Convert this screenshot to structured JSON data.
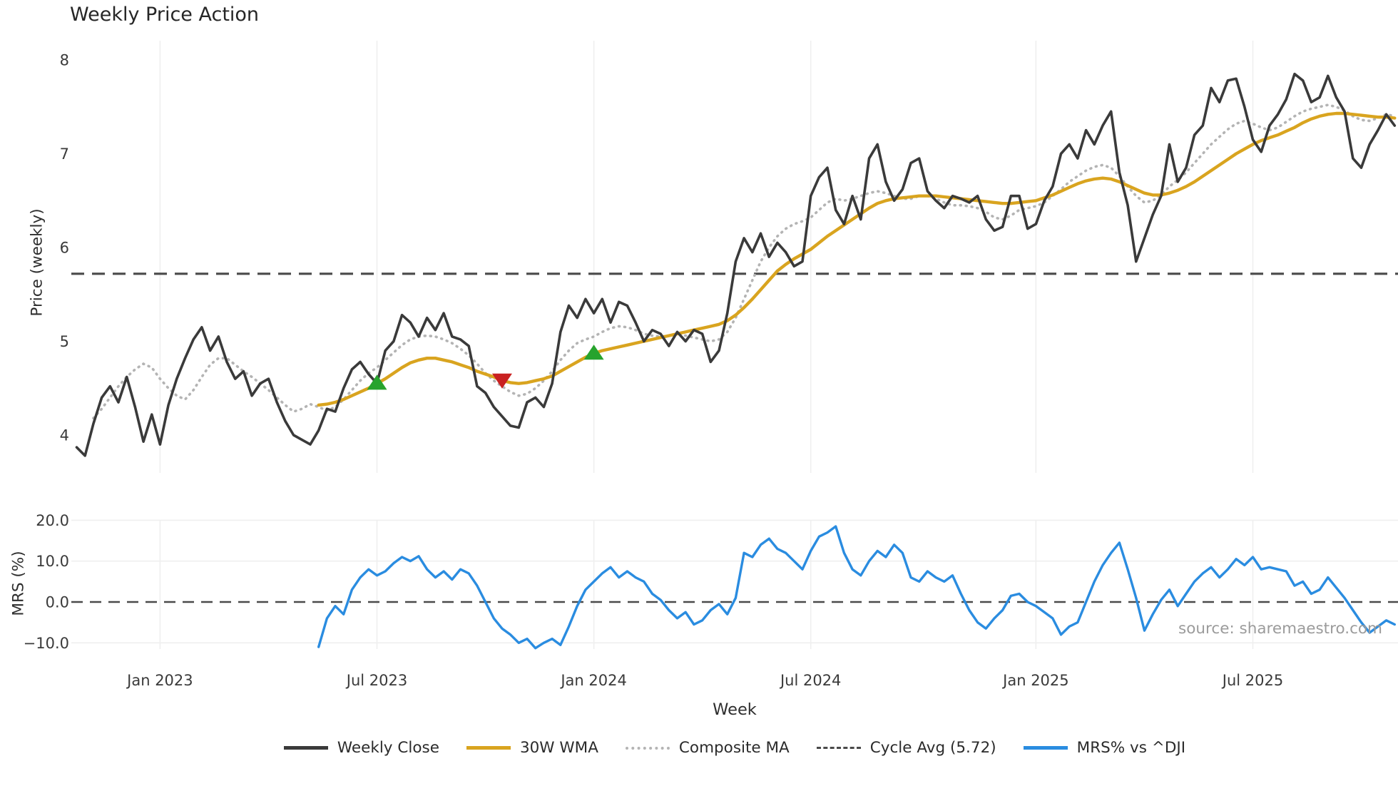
{
  "title": "Weekly Price Action",
  "source": "source: sharemaestro.com",
  "colors": {
    "close": "#3a3a3a",
    "wma": "#d9a41f",
    "composite": "#b4b4b4",
    "cycle": "#4a4a4a",
    "mrs": "#2a8ce0",
    "buy": "#27a32d",
    "sell": "#c92121",
    "grid": "#efefef"
  },
  "axes": {
    "price": {
      "label": "Price (weekly)",
      "ticks": [
        8,
        7,
        6,
        5,
        4
      ]
    },
    "mrs": {
      "label": "MRS (%)",
      "ticks": [
        "20.0",
        "10.0",
        "0.0",
        "−10.0"
      ],
      "tick_values": [
        20,
        10,
        0,
        -10
      ]
    },
    "x": {
      "label": "Week",
      "ticks": [
        {
          "week": 10,
          "label": "Jan 2023"
        },
        {
          "week": 36,
          "label": "Jul 2023"
        },
        {
          "week": 62,
          "label": "Jan 2024"
        },
        {
          "week": 88,
          "label": "Jul 2024"
        },
        {
          "week": 115,
          "label": "Jan 2025"
        },
        {
          "week": 141,
          "label": "Jul 2025"
        }
      ]
    }
  },
  "legend": {
    "items": [
      {
        "label": "Weekly Close",
        "style": "solid",
        "color": "#3a3a3a"
      },
      {
        "label": "30W WMA",
        "style": "solid",
        "color": "#d9a41f"
      },
      {
        "label": "Composite MA",
        "style": "dotted",
        "color": "#b4b4b4"
      },
      {
        "label": "Cycle Avg (5.72)",
        "style": "dashed",
        "color": "#4a4a4a"
      },
      {
        "label": "MRS% vs ^DJI",
        "style": "solid",
        "color": "#2a8ce0"
      }
    ]
  },
  "chart_data": [
    {
      "type": "line",
      "title": "Weekly Price Action",
      "xlabel": "Week",
      "ylabel": "Price (weekly)",
      "ylim": [
        3.27,
        8.21
      ],
      "grid": "vertical-only",
      "legend_position": "below-figure",
      "x_unit": "week-index (week 0 ≈ late Oct 2022, 26 weeks per half-year tick)",
      "series": [
        {
          "name": "Weekly Close",
          "style": "solid",
          "color": "#3a3a3a",
          "start_week": 0,
          "values": [
            3.87,
            3.78,
            4.12,
            4.4,
            4.52,
            4.35,
            4.62,
            4.3,
            3.93,
            4.22,
            3.9,
            4.32,
            4.6,
            4.82,
            5.02,
            5.15,
            4.9,
            5.05,
            4.78,
            4.6,
            4.68,
            4.42,
            4.55,
            4.6,
            4.35,
            4.15,
            4.0,
            3.95,
            3.9,
            4.05,
            4.28,
            4.25,
            4.5,
            4.7,
            4.78,
            4.65,
            4.55,
            4.9,
            5.0,
            5.28,
            5.2,
            5.05,
            5.25,
            5.12,
            5.3,
            5.05,
            5.02,
            4.95,
            4.52,
            4.45,
            4.3,
            4.2,
            4.1,
            4.08,
            4.35,
            4.4,
            4.3,
            4.55,
            5.1,
            5.38,
            5.25,
            5.45,
            5.3,
            5.45,
            5.2,
            5.42,
            5.38,
            5.2,
            5.0,
            5.12,
            5.08,
            4.95,
            5.1,
            5.0,
            5.12,
            5.08,
            4.78,
            4.9,
            5.3,
            5.85,
            6.1,
            5.95,
            6.15,
            5.9,
            6.05,
            5.95,
            5.8,
            5.85,
            6.55,
            6.75,
            6.85,
            6.4,
            6.25,
            6.55,
            6.3,
            6.95,
            7.1,
            6.7,
            6.5,
            6.62,
            6.9,
            6.95,
            6.6,
            6.5,
            6.42,
            6.55,
            6.52,
            6.48,
            6.55,
            6.3,
            6.18,
            6.22,
            6.55,
            6.55,
            6.2,
            6.25,
            6.5,
            6.65,
            7.0,
            7.1,
            6.95,
            7.25,
            7.1,
            7.3,
            7.45,
            6.8,
            6.45,
            5.85,
            6.1,
            6.35,
            6.55,
            7.1,
            6.7,
            6.85,
            7.2,
            7.3,
            7.7,
            7.55,
            7.78,
            7.8,
            7.5,
            7.15,
            7.02,
            7.3,
            7.42,
            7.58,
            7.85,
            7.78,
            7.55,
            7.6,
            7.83,
            7.6,
            7.45,
            6.95,
            6.85,
            7.1,
            7.25,
            7.42,
            7.3
          ]
        },
        {
          "name": "30W WMA",
          "style": "solid",
          "color": "#d9a41f",
          "start_week": 29,
          "values": [
            4.32,
            4.33,
            4.35,
            4.38,
            4.42,
            4.46,
            4.5,
            4.55,
            4.6,
            4.66,
            4.72,
            4.77,
            4.8,
            4.82,
            4.82,
            4.8,
            4.78,
            4.75,
            4.72,
            4.68,
            4.65,
            4.62,
            4.58,
            4.56,
            4.55,
            4.56,
            4.58,
            4.6,
            4.63,
            4.68,
            4.73,
            4.78,
            4.83,
            4.87,
            4.9,
            4.92,
            4.94,
            4.96,
            4.98,
            5.0,
            5.02,
            5.04,
            5.06,
            5.08,
            5.1,
            5.12,
            5.14,
            5.16,
            5.18,
            5.22,
            5.28,
            5.36,
            5.45,
            5.55,
            5.65,
            5.75,
            5.82,
            5.88,
            5.93,
            5.98,
            6.05,
            6.12,
            6.18,
            6.24,
            6.3,
            6.36,
            6.42,
            6.47,
            6.5,
            6.52,
            6.53,
            6.54,
            6.55,
            6.55,
            6.55,
            6.54,
            6.53,
            6.52,
            6.51,
            6.5,
            6.49,
            6.48,
            6.47,
            6.47,
            6.48,
            6.49,
            6.5,
            6.53,
            6.56,
            6.6,
            6.64,
            6.68,
            6.71,
            6.73,
            6.74,
            6.73,
            6.7,
            6.66,
            6.62,
            6.58,
            6.56,
            6.56,
            6.58,
            6.61,
            6.65,
            6.7,
            6.76,
            6.82,
            6.88,
            6.94,
            7.0,
            7.05,
            7.1,
            7.14,
            7.17,
            7.2,
            7.24,
            7.28,
            7.33,
            7.37,
            7.4,
            7.42,
            7.43,
            7.43,
            7.42,
            7.41,
            7.4,
            7.39,
            7.39,
            7.38
          ]
        },
        {
          "name": "Composite MA",
          "style": "dotted",
          "color": "#b4b4b4",
          "start_week": 2,
          "values": [
            4.18,
            4.28,
            4.4,
            4.52,
            4.62,
            4.7,
            4.76,
            4.72,
            4.6,
            4.5,
            4.42,
            4.38,
            4.48,
            4.62,
            4.75,
            4.82,
            4.82,
            4.75,
            4.68,
            4.62,
            4.55,
            4.48,
            4.4,
            4.32,
            4.25,
            4.28,
            4.33,
            4.3,
            4.26,
            4.3,
            4.38,
            4.48,
            4.58,
            4.66,
            4.72,
            4.8,
            4.88,
            4.96,
            5.02,
            5.05,
            5.06,
            5.05,
            5.02,
            4.98,
            4.92,
            4.85,
            4.76,
            4.66,
            4.58,
            4.52,
            4.46,
            4.42,
            4.44,
            4.5,
            4.58,
            4.68,
            4.8,
            4.9,
            4.98,
            5.02,
            5.05,
            5.1,
            5.14,
            5.16,
            5.15,
            5.12,
            5.08,
            5.06,
            5.05,
            5.06,
            5.08,
            5.06,
            5.04,
            5.02,
            5.0,
            5.02,
            5.1,
            5.25,
            5.45,
            5.65,
            5.85,
            6.0,
            6.12,
            6.2,
            6.25,
            6.28,
            6.32,
            6.4,
            6.48,
            6.52,
            6.5,
            6.52,
            6.55,
            6.58,
            6.6,
            6.58,
            6.55,
            6.52,
            6.52,
            6.55,
            6.55,
            6.52,
            6.48,
            6.45,
            6.45,
            6.44,
            6.42,
            6.38,
            6.32,
            6.3,
            6.34,
            6.4,
            6.42,
            6.44,
            6.48,
            6.55,
            6.62,
            6.7,
            6.76,
            6.82,
            6.86,
            6.88,
            6.85,
            6.76,
            6.65,
            6.55,
            6.48,
            6.5,
            6.56,
            6.65,
            6.72,
            6.8,
            6.9,
            7.0,
            7.1,
            7.18,
            7.26,
            7.32,
            7.35,
            7.32,
            7.28,
            7.25,
            7.28,
            7.34,
            7.4,
            7.45,
            7.48,
            7.5,
            7.52,
            7.5,
            7.46,
            7.4,
            7.36,
            7.35,
            7.38,
            7.42,
            7.4
          ]
        },
        {
          "name": "Cycle Avg (5.72)",
          "style": "dashed",
          "color": "#4a4a4a",
          "constant": 5.72
        }
      ],
      "markers": [
        {
          "shape": "triangle-up",
          "signal": "buy",
          "color": "#27a32d",
          "week": 36,
          "value": 4.56
        },
        {
          "shape": "triangle-down",
          "signal": "sell",
          "color": "#c92121",
          "week": 51,
          "value": 4.58
        },
        {
          "shape": "triangle-up",
          "signal": "buy",
          "color": "#27a32d",
          "week": 62,
          "value": 4.88
        }
      ]
    },
    {
      "type": "line",
      "xlabel": "Week",
      "ylabel": "MRS (%)",
      "ylim": [
        -11.5,
        20.1
      ],
      "grid": "horizontal-and-vertical",
      "series": [
        {
          "name": "MRS% vs ^DJI",
          "style": "solid",
          "color": "#2a8ce0",
          "start_week": 29,
          "values": [
            -11,
            -4,
            -1,
            -3,
            3,
            6,
            8,
            6.5,
            7.5,
            9.5,
            11,
            10,
            11.2,
            8,
            6,
            7.5,
            5.5,
            8,
            7,
            4,
            0,
            -4,
            -6.5,
            -8,
            -10,
            -9,
            -11.3,
            -10,
            -9,
            -10.5,
            -6,
            -1,
            3,
            5,
            7,
            8.5,
            6,
            7.5,
            6,
            5,
            2,
            0.5,
            -2,
            -4,
            -2.5,
            -5.5,
            -4.5,
            -2,
            -0.5,
            -3,
            1,
            12,
            11,
            14,
            15.5,
            13,
            12,
            10,
            8,
            12.5,
            16,
            17,
            18.5,
            12,
            8,
            6.5,
            10,
            12.5,
            11,
            14,
            12,
            6,
            5,
            7.5,
            6,
            5,
            6.5,
            2,
            -2,
            -5,
            -6.5,
            -4,
            -2,
            1.5,
            2,
            0,
            -1,
            -2.5,
            -4,
            -8,
            -6,
            -5,
            0,
            5,
            9,
            12,
            14.5,
            8,
            1,
            -7,
            -3,
            0.5,
            3,
            -1,
            2,
            5,
            7,
            8.5,
            6,
            8,
            10.5,
            9,
            11,
            8,
            8.5,
            8,
            7.5,
            4,
            5,
            2,
            3,
            6,
            3.5,
            1,
            -2,
            -5,
            -7.5,
            -6,
            -4.5,
            -5.5
          ]
        },
        {
          "name": "Zero line",
          "style": "dashed",
          "color": "#4a4a4a",
          "constant": 0
        }
      ]
    }
  ]
}
